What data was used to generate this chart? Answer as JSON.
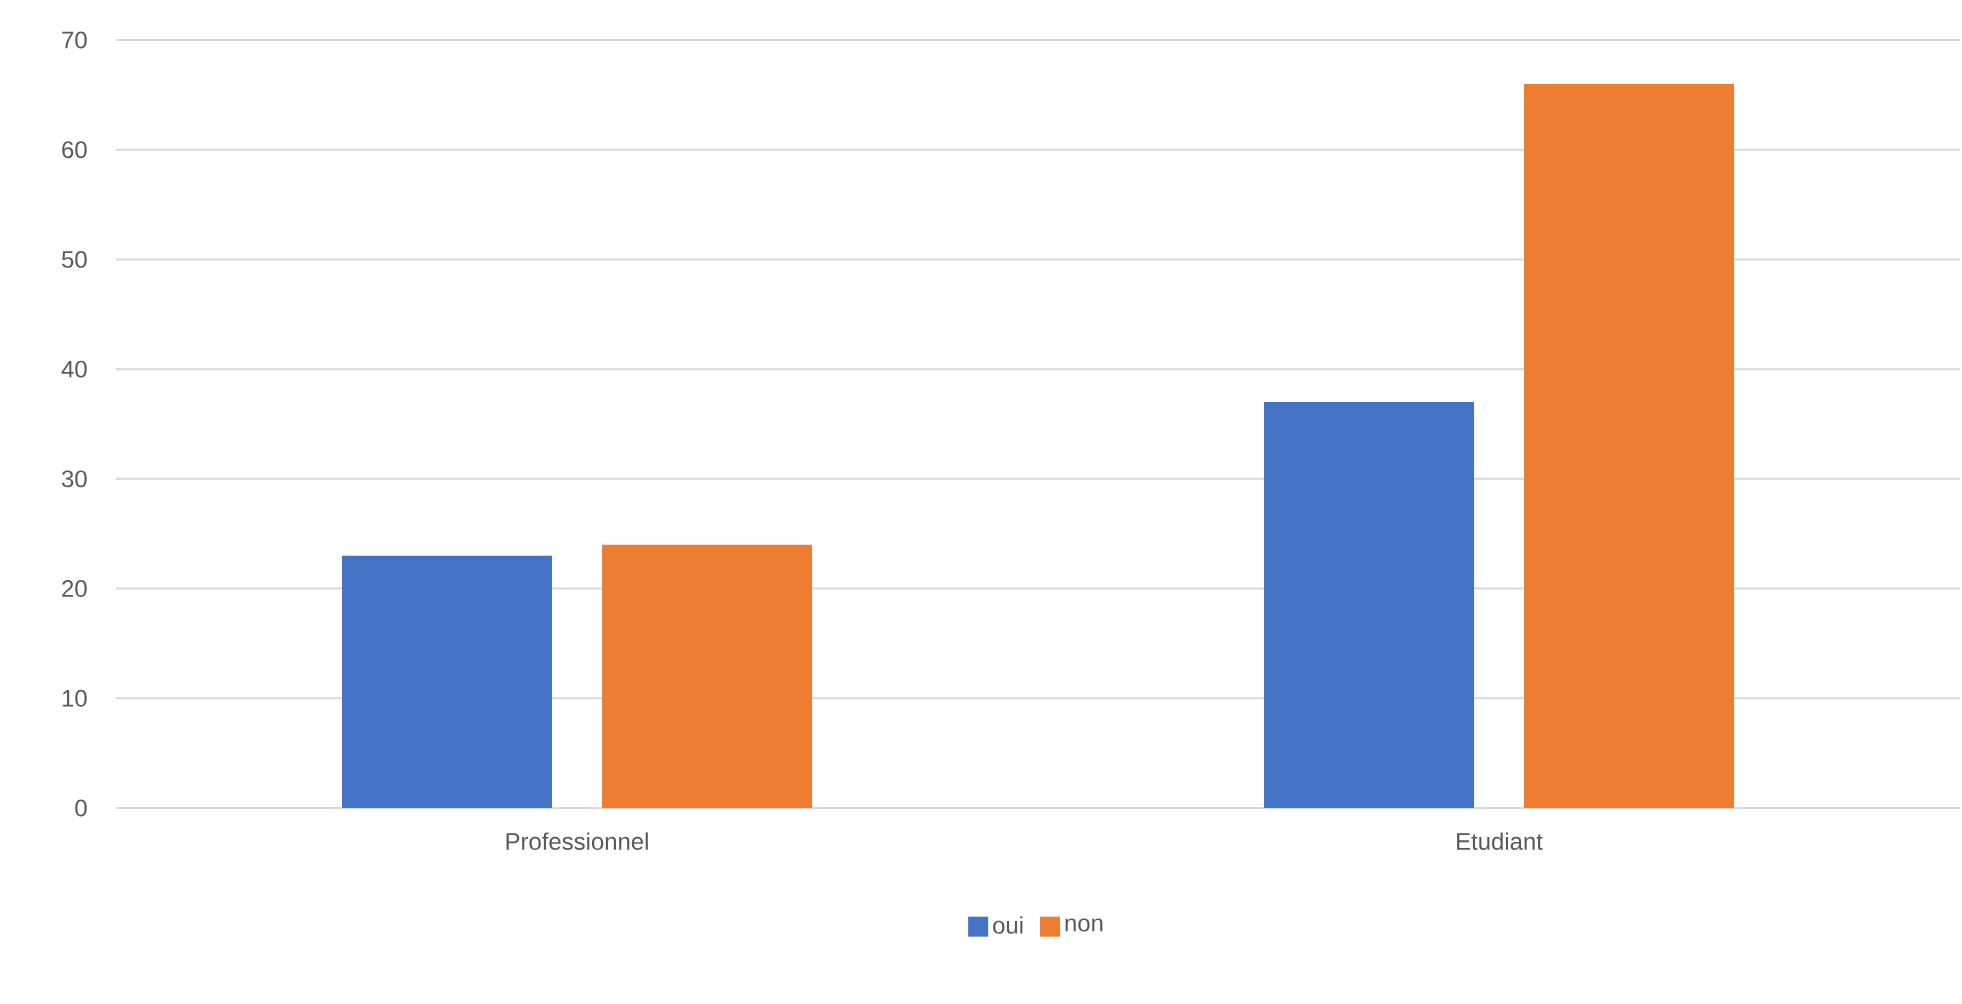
{
  "chart_data": {
    "type": "bar",
    "categories": [
      "Professionnel",
      "Etudiant"
    ],
    "series": [
      {
        "name": "oui",
        "color": "#4472c4",
        "values": [
          23,
          37
        ]
      },
      {
        "name": "non",
        "color": "#ed7d31",
        "values": [
          24,
          66
        ]
      }
    ],
    "ylim": [
      0,
      70
    ],
    "yticks": [
      0,
      10,
      20,
      30,
      40,
      50,
      60,
      70
    ],
    "grid": "y",
    "legend": "bottom"
  }
}
